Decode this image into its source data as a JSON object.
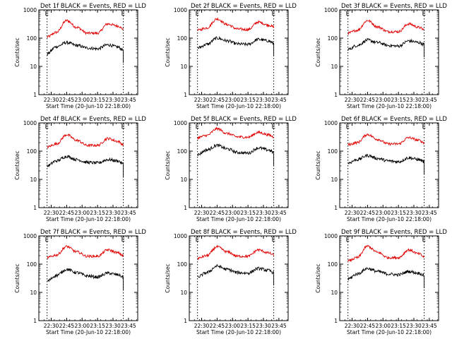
{
  "figure": {
    "x_label": "Start Time (20-Jun-10 22:18:00)",
    "y_label": "Counts/sec",
    "flag_label": "E",
    "y_ticks": [
      "1",
      "10",
      "100",
      "1000"
    ],
    "x_ticks": [
      "22:30",
      "22:45",
      "23:00",
      "23:15",
      "23:30",
      "23:45"
    ],
    "colors": {
      "events": "#000000",
      "lld": "#e00000",
      "axes": "#000000"
    }
  },
  "chart_data": [
    {
      "type": "line",
      "title": "Det 1f BLACK = Events, RED = LLD",
      "xlabel": "Start Time (20-Jun-10 22:18:00)",
      "ylabel": "Counts/sec",
      "y_scale": "log",
      "ylim": [
        1,
        1000
      ],
      "xlim": [
        "22:18",
        "23:54"
      ],
      "dashed_markers": [
        "22:26",
        "23:40"
      ],
      "x": [
        "22:26",
        "22:35",
        "22:45",
        "22:55",
        "23:05",
        "23:15",
        "23:25",
        "23:35",
        "23:40"
      ],
      "series": [
        {
          "color": "red",
          "values": [
            110,
            160,
            420,
            240,
            150,
            150,
            320,
            270,
            210
          ]
        },
        {
          "color": "black",
          "values": [
            28,
            50,
            70,
            55,
            45,
            42,
            58,
            48,
            38
          ]
        }
      ]
    },
    {
      "type": "line",
      "title": "Det 2f BLACK = Events, RED = LLD",
      "xlabel": "Start Time (20-Jun-10 22:18:00)",
      "ylabel": "Counts/sec",
      "y_scale": "log",
      "ylim": [
        1,
        1000
      ],
      "xlim": [
        "22:18",
        "23:54"
      ],
      "dashed_markers": [
        "22:26",
        "23:40"
      ],
      "x": [
        "22:26",
        "22:35",
        "22:45",
        "22:55",
        "23:05",
        "23:15",
        "23:25",
        "23:35",
        "23:40"
      ],
      "series": [
        {
          "color": "red",
          "values": [
            190,
            230,
            480,
            300,
            210,
            200,
            370,
            290,
            250
          ]
        },
        {
          "color": "black",
          "values": [
            45,
            60,
            100,
            80,
            62,
            60,
            90,
            80,
            65
          ]
        }
      ]
    },
    {
      "type": "line",
      "title": "Det 3f BLACK = Events, RED = LLD",
      "xlabel": "Start Time (20-Jun-10 22:18:00)",
      "ylabel": "Counts/sec",
      "y_scale": "log",
      "ylim": [
        1,
        1000
      ],
      "xlim": [
        "22:18",
        "23:54"
      ],
      "dashed_markers": [
        "22:26",
        "23:40"
      ],
      "x": [
        "22:26",
        "22:35",
        "22:45",
        "22:55",
        "23:05",
        "23:15",
        "23:25",
        "23:35",
        "23:40"
      ],
      "series": [
        {
          "color": "red",
          "values": [
            150,
            190,
            420,
            250,
            170,
            170,
            320,
            240,
            200
          ]
        },
        {
          "color": "black",
          "values": [
            40,
            55,
            85,
            70,
            55,
            52,
            80,
            70,
            60
          ]
        }
      ]
    },
    {
      "type": "line",
      "title": "Det 4f BLACK = Events, RED = LLD",
      "xlabel": "Start Time (20-Jun-10 22:18:00)",
      "ylabel": "Counts/sec",
      "y_scale": "log",
      "ylim": [
        1,
        1000
      ],
      "xlim": [
        "22:18",
        "23:54"
      ],
      "dashed_markers": [
        "22:26",
        "23:40"
      ],
      "x": [
        "22:26",
        "22:35",
        "22:45",
        "22:55",
        "23:05",
        "23:15",
        "23:25",
        "23:35",
        "23:40"
      ],
      "series": [
        {
          "color": "red",
          "values": [
            140,
            180,
            380,
            240,
            160,
            160,
            280,
            220,
            170
          ]
        },
        {
          "color": "black",
          "values": [
            30,
            45,
            65,
            50,
            40,
            38,
            50,
            45,
            35
          ]
        }
      ]
    },
    {
      "type": "line",
      "title": "Det 5f BLACK = Events, RED = LLD",
      "xlabel": "Start Time (20-Jun-10 22:18:00)",
      "ylabel": "Counts/sec",
      "y_scale": "log",
      "ylim": [
        1,
        1000
      ],
      "xlim": [
        "22:18",
        "23:54"
      ],
      "dashed_markers": [
        "22:26",
        "23:40"
      ],
      "x": [
        "22:26",
        "22:35",
        "22:45",
        "22:55",
        "23:05",
        "23:15",
        "23:25",
        "23:35",
        "23:40"
      ],
      "series": [
        {
          "color": "red",
          "values": [
            300,
            360,
            620,
            420,
            320,
            310,
            460,
            380,
            320
          ]
        },
        {
          "color": "black",
          "values": [
            75,
            110,
            160,
            120,
            90,
            85,
            130,
            110,
            90
          ]
        }
      ]
    },
    {
      "type": "line",
      "title": "Det 6f BLACK = Events, RED = LLD",
      "xlabel": "Start Time (20-Jun-10 22:18:00)",
      "ylabel": "Counts/sec",
      "y_scale": "log",
      "ylim": [
        1,
        1000
      ],
      "xlim": [
        "22:18",
        "23:54"
      ],
      "dashed_markers": [
        "22:26",
        "23:40"
      ],
      "x": [
        "22:26",
        "22:35",
        "22:45",
        "22:55",
        "23:05",
        "23:15",
        "23:25",
        "23:35",
        "23:40"
      ],
      "series": [
        {
          "color": "red",
          "values": [
            170,
            200,
            390,
            260,
            180,
            180,
            300,
            240,
            200
          ]
        },
        {
          "color": "black",
          "values": [
            38,
            50,
            70,
            55,
            45,
            42,
            58,
            50,
            42
          ]
        }
      ]
    },
    {
      "type": "line",
      "title": "Det 7f BLACK = Events, RED = LLD",
      "xlabel": "Start Time (20-Jun-10 22:18:00)",
      "ylabel": "Counts/sec",
      "y_scale": "log",
      "ylim": [
        1,
        1000
      ],
      "xlim": [
        "22:18",
        "23:54"
      ],
      "dashed_markers": [
        "22:26",
        "23:40"
      ],
      "x": [
        "22:26",
        "22:35",
        "22:45",
        "22:55",
        "23:05",
        "23:15",
        "23:25",
        "23:35",
        "23:40"
      ],
      "series": [
        {
          "color": "red",
          "values": [
            170,
            210,
            420,
            270,
            190,
            190,
            320,
            250,
            200
          ]
        },
        {
          "color": "black",
          "values": [
            25,
            40,
            65,
            50,
            38,
            35,
            48,
            42,
            35
          ]
        }
      ]
    },
    {
      "type": "line",
      "title": "Det 8f BLACK = Events, RED = LLD",
      "xlabel": "Start Time (20-Jun-10 22:18:00)",
      "ylabel": "Counts/sec",
      "y_scale": "log",
      "ylim": [
        1,
        1000
      ],
      "xlim": [
        "22:18",
        "23:54"
      ],
      "dashed_markers": [
        "22:26",
        "23:40"
      ],
      "x": [
        "22:26",
        "22:35",
        "22:45",
        "22:55",
        "23:05",
        "23:15",
        "23:25",
        "23:35",
        "23:40"
      ],
      "series": [
        {
          "color": "red",
          "values": [
            160,
            200,
            410,
            270,
            190,
            190,
            320,
            250,
            210
          ]
        },
        {
          "color": "black",
          "values": [
            35,
            50,
            85,
            65,
            50,
            48,
            70,
            60,
            50
          ]
        }
      ]
    },
    {
      "type": "line",
      "title": "Det 9f BLACK = Events, RED = LLD",
      "xlabel": "Start Time (20-Jun-10 22:18:00)",
      "ylabel": "Counts/sec",
      "y_scale": "log",
      "ylim": [
        1,
        1000
      ],
      "xlim": [
        "22:18",
        "23:54"
      ],
      "dashed_markers": [
        "22:26",
        "23:40"
      ],
      "x": [
        "22:26",
        "22:35",
        "22:45",
        "22:55",
        "23:05",
        "23:15",
        "23:25",
        "23:35",
        "23:40"
      ],
      "series": [
        {
          "color": "red",
          "values": [
            130,
            170,
            430,
            260,
            170,
            170,
            320,
            230,
            180
          ]
        },
        {
          "color": "black",
          "values": [
            30,
            45,
            70,
            55,
            45,
            42,
            55,
            48,
            40
          ]
        }
      ]
    }
  ]
}
